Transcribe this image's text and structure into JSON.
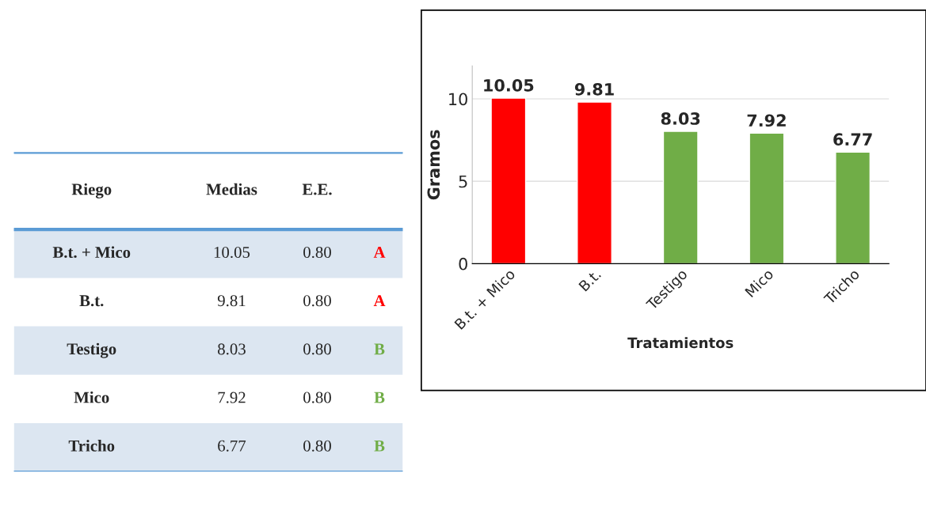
{
  "chart_data": [
    {
      "type": "other",
      "categories": [
        "Riego",
        "Medias",
        "E.E.",
        null
      ],
      "cell_labels": [
        [
          "B.t. + Mico",
          "10.05",
          "0.80",
          "A"
        ],
        [
          "B.t.",
          "9.81",
          "0.80",
          "A"
        ],
        [
          "Testigo",
          "8.03",
          "0.80",
          "B"
        ],
        [
          "Mico",
          "7.92",
          "0.80",
          "B"
        ],
        [
          "Tricho",
          "6.77",
          "0.80",
          "B"
        ]
      ],
      "colors": [
        "#ff0000",
        "#ff0000",
        "#70ad47",
        "#70ad47",
        "#70ad47"
      ]
    },
    {
      "type": "bar",
      "categories": [
        "B.t. + Mico",
        "B.t.",
        "Testigo",
        "Mico",
        "Tricho"
      ],
      "values": [
        10.05,
        9.81,
        8.03,
        7.92,
        6.77
      ],
      "colors": [
        "#ff0000",
        "#ff0000",
        "#70ad47",
        "#70ad47",
        "#70ad47"
      ],
      "xlabel": "Tratamientos",
      "ylabel": "Gramos",
      "ylim": [
        0,
        12
      ],
      "yticks": [
        0,
        5,
        10
      ],
      "grid": "y",
      "data_labels": true
    }
  ]
}
